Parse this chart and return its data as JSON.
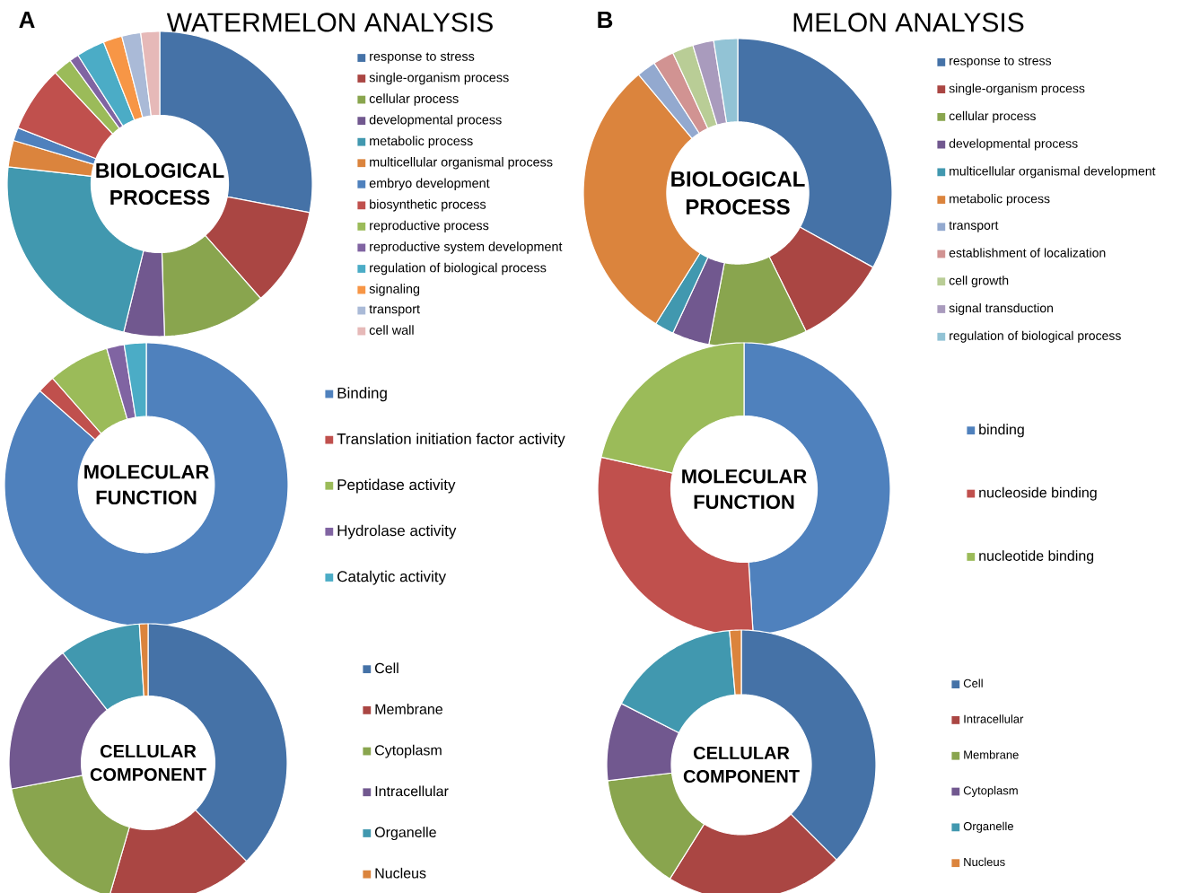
{
  "chart_data": [
    {
      "type": "donut",
      "title": "BIOLOGICAL PROCESS",
      "subtitle": "WATERMELON ANALYSIS",
      "annotations": [
        "A"
      ],
      "legend": "right",
      "categories": [
        "response to stress",
        "single-organism process",
        "cellular process",
        "developmental process",
        "metabolic process",
        "multicellular organismal process",
        "embryo development",
        "biosynthetic process",
        "reproductive process",
        "reproductive system development",
        "regulation of biological process",
        "signaling",
        "transport",
        "cell wall"
      ],
      "values": [
        28,
        10.5,
        11,
        4.3,
        23,
        2.8,
        1.4,
        7,
        2,
        1,
        3,
        2,
        2,
        2
      ],
      "colors": [
        "#4572a7",
        "#aa4643",
        "#89a54e",
        "#71588f",
        "#4198af",
        "#db843d",
        "#4f81bd",
        "#c0504d",
        "#9bbb59",
        "#8064a2",
        "#4bacc6",
        "#f79646",
        "#aabad7",
        "#e6b9b8"
      ]
    },
    {
      "type": "donut",
      "title": "MOLECULAR FUNCTION",
      "legend": "right",
      "categories": [
        "Binding",
        "Translation initiation factor activity",
        "Peptidase activity",
        "Hydrolase activity",
        "Catalytic activity"
      ],
      "values": [
        86.5,
        2,
        7,
        2,
        2.5
      ],
      "colors": [
        "#4f81bd",
        "#c0504d",
        "#9bbb59",
        "#8064a2",
        "#4bacc6"
      ]
    },
    {
      "type": "donut",
      "title": "CELLULAR COMPONENT",
      "legend": "right",
      "categories": [
        "Cell",
        "Membrane",
        "Cytoplasm",
        "Intracellular",
        "Organelle",
        "Nucleus"
      ],
      "values": [
        37.5,
        17,
        17.5,
        17.5,
        9.5,
        1
      ],
      "colors": [
        "#4572a7",
        "#aa4643",
        "#89a54e",
        "#71588f",
        "#4198af",
        "#db843d"
      ]
    },
    {
      "type": "donut",
      "title": "BIOLOGICAL PROCESS",
      "subtitle": "MELON ANALYSIS",
      "annotations": [
        "B"
      ],
      "legend": "right",
      "categories": [
        "response to stress",
        "single-organism process",
        "cellular process",
        "developmental process",
        "multicellular organismal development",
        "metabolic process",
        "transport",
        "establishment of localization",
        "cell growth",
        "signal transduction",
        "regulation of biological process"
      ],
      "values": [
        33,
        9.7,
        10.3,
        3.9,
        2,
        30,
        2,
        2.2,
        2.2,
        2.2,
        2.5
      ],
      "colors": [
        "#4572a7",
        "#aa4643",
        "#89a54e",
        "#71588f",
        "#4198af",
        "#db843d",
        "#93a9cf",
        "#d19392",
        "#b9cd96",
        "#a99bbd",
        "#92c3d5"
      ]
    },
    {
      "type": "donut",
      "title": "MOLECULAR FUNCTION",
      "legend": "right",
      "categories": [
        "binding",
        "nucleoside binding",
        "nucleotide binding"
      ],
      "values": [
        49,
        29.5,
        21.5
      ],
      "colors": [
        "#4f81bd",
        "#c0504d",
        "#9bbb59"
      ]
    },
    {
      "type": "donut",
      "title": "CELLULAR COMPONENT",
      "legend": "right",
      "categories": [
        "Cell",
        "Intracellular",
        "Membrane",
        "Cytoplasm",
        "Organelle",
        "Nucleus"
      ],
      "values": [
        37.5,
        21.4,
        14.2,
        9.4,
        16.1,
        1.4
      ],
      "colors": [
        "#4572a7",
        "#aa4643",
        "#89a54e",
        "#71588f",
        "#4198af",
        "#db843d"
      ]
    }
  ]
}
